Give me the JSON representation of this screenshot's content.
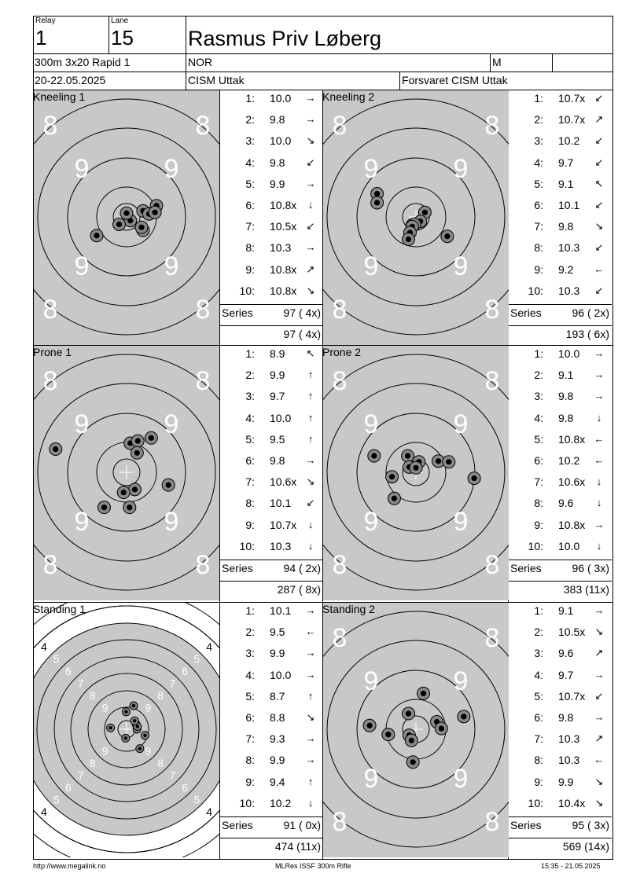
{
  "header": {
    "relay_label": "Relay",
    "relay_value": "1",
    "lane_label": "Lane",
    "lane_value": "15",
    "name": "Rasmus Priv Løberg",
    "event": "300m 3x20 Rapid 1",
    "nation": "NOR",
    "gender": "M",
    "date": "20-22.05.2025",
    "competition": "CISM Uttak",
    "organizer": "Forsvaret CISM Uttak"
  },
  "series": [
    {
      "title": "Kneeling 1",
      "target_kind": "prone_kneel",
      "shots": [
        {
          "n": "1:",
          "v": "10.0",
          "arrow": "→"
        },
        {
          "n": "2:",
          "v": "9.8",
          "arrow": "→"
        },
        {
          "n": "3:",
          "v": "10.0",
          "arrow": "↘"
        },
        {
          "n": "4:",
          "v": "9.8",
          "arrow": "↙"
        },
        {
          "n": "5:",
          "v": "9.9",
          "arrow": "→"
        },
        {
          "n": "6:",
          "v": "10.8x",
          "arrow": "↓"
        },
        {
          "n": "7:",
          "v": "10.5x",
          "arrow": "↙"
        },
        {
          "n": "8:",
          "v": "10.3",
          "arrow": "→"
        },
        {
          "n": "9:",
          "v": "10.8x",
          "arrow": "↗"
        },
        {
          "n": "10:",
          "v": "10.8x",
          "arrow": "↘"
        }
      ],
      "series_label": "Series",
      "series_total": "97 ( 4x)",
      "running_total": "97 ( 4x)",
      "holes": [
        [
          0.22,
          -0.18
        ],
        [
          0.05,
          -0.05
        ],
        [
          0.0,
          0.05
        ],
        [
          -0.1,
          -0.1
        ],
        [
          0.22,
          0.08
        ],
        [
          0.3,
          0.04
        ],
        [
          0.4,
          0.15
        ],
        [
          0.38,
          0.06
        ],
        [
          -0.4,
          -0.25
        ],
        [
          0.2,
          -0.14
        ]
      ]
    },
    {
      "title": "Kneeling 2",
      "target_kind": "prone_kneel",
      "shots": [
        {
          "n": "1:",
          "v": "10.7x",
          "arrow": "↙"
        },
        {
          "n": "2:",
          "v": "10.7x",
          "arrow": "↗"
        },
        {
          "n": "3:",
          "v": "10.2",
          "arrow": "↙"
        },
        {
          "n": "4:",
          "v": "9.7",
          "arrow": "↙"
        },
        {
          "n": "5:",
          "v": "9.1",
          "arrow": "↖"
        },
        {
          "n": "6:",
          "v": "10.1",
          "arrow": "↙"
        },
        {
          "n": "7:",
          "v": "9.8",
          "arrow": "↘"
        },
        {
          "n": "8:",
          "v": "10.3",
          "arrow": "↙"
        },
        {
          "n": "9:",
          "v": "9.2",
          "arrow": "←"
        },
        {
          "n": "10:",
          "v": "10.3",
          "arrow": "↙"
        }
      ],
      "series_label": "Series",
      "series_total": "96 ( 2x)",
      "running_total": "193 ( 6x)",
      "holes": [
        [
          0.12,
          0.06
        ],
        [
          0.06,
          -0.06
        ],
        [
          -0.05,
          -0.11
        ],
        [
          -0.02,
          -0.1
        ],
        [
          -0.52,
          0.31
        ],
        [
          -0.05,
          -0.13
        ],
        [
          -0.08,
          -0.21
        ],
        [
          0.42,
          -0.26
        ],
        [
          -0.1,
          -0.3
        ],
        [
          -0.52,
          0.19
        ]
      ]
    },
    {
      "title": "Prone 1",
      "target_kind": "prone_kneel",
      "shots": [
        {
          "n": "1:",
          "v": "8.9",
          "arrow": "↖"
        },
        {
          "n": "2:",
          "v": "9.9",
          "arrow": "↑"
        },
        {
          "n": "3:",
          "v": "9.7",
          "arrow": "↑"
        },
        {
          "n": "4:",
          "v": "10.0",
          "arrow": "↑"
        },
        {
          "n": "5:",
          "v": "9.5",
          "arrow": "↑"
        },
        {
          "n": "6:",
          "v": "9.8",
          "arrow": "→"
        },
        {
          "n": "7:",
          "v": "10.6x",
          "arrow": "↘"
        },
        {
          "n": "8:",
          "v": "10.1",
          "arrow": "↙"
        },
        {
          "n": "9:",
          "v": "10.7x",
          "arrow": "↓"
        },
        {
          "n": "10:",
          "v": "10.3",
          "arrow": "↓"
        }
      ],
      "series_label": "Series",
      "series_total": "94 ( 2x)",
      "running_total": "287 ( 8x)",
      "holes": [
        [
          -0.95,
          0.31
        ],
        [
          0.05,
          0.39
        ],
        [
          0.15,
          0.42
        ],
        [
          0.33,
          0.46
        ],
        [
          0.14,
          0.26
        ],
        [
          0.56,
          -0.17
        ],
        [
          0.11,
          -0.23
        ],
        [
          -0.04,
          -0.27
        ],
        [
          0.04,
          -0.47
        ],
        [
          -0.3,
          -0.47
        ]
      ]
    },
    {
      "title": "Prone 2",
      "target_kind": "prone_kneel",
      "shots": [
        {
          "n": "1:",
          "v": "10.0",
          "arrow": "→"
        },
        {
          "n": "2:",
          "v": "9.1",
          "arrow": "→"
        },
        {
          "n": "3:",
          "v": "9.8",
          "arrow": "→"
        },
        {
          "n": "4:",
          "v": "9.8",
          "arrow": "↓"
        },
        {
          "n": "5:",
          "v": "10.8x",
          "arrow": "←"
        },
        {
          "n": "6:",
          "v": "10.2",
          "arrow": "←"
        },
        {
          "n": "7:",
          "v": "10.6x",
          "arrow": "↓"
        },
        {
          "n": "8:",
          "v": "9.6",
          "arrow": "↓"
        },
        {
          "n": "9:",
          "v": "10.8x",
          "arrow": "→"
        },
        {
          "n": "10:",
          "v": "10.0",
          "arrow": "↓"
        }
      ],
      "series_label": "Series",
      "series_total": "96 ( 3x)",
      "running_total": "383 (11x)",
      "holes": [
        [
          -0.32,
          -0.06
        ],
        [
          -0.11,
          0.22
        ],
        [
          -0.29,
          -0.35
        ],
        [
          -0.56,
          0.22
        ],
        [
          -0.09,
          0.07
        ],
        [
          0.04,
          0.14
        ],
        [
          0.0,
          0.06
        ],
        [
          0.3,
          0.15
        ],
        [
          0.44,
          0.14
        ],
        [
          0.78,
          -0.08
        ]
      ]
    },
    {
      "title": "Standing 1",
      "target_kind": "standing",
      "shots": [
        {
          "n": "1:",
          "v": "10.1",
          "arrow": "→"
        },
        {
          "n": "2:",
          "v": "9.5",
          "arrow": "←"
        },
        {
          "n": "3:",
          "v": "9.9",
          "arrow": "→"
        },
        {
          "n": "4:",
          "v": "10.0",
          "arrow": "→"
        },
        {
          "n": "5:",
          "v": "8.7",
          "arrow": "↑"
        },
        {
          "n": "6:",
          "v": "8.8",
          "arrow": "↘"
        },
        {
          "n": "7:",
          "v": "9.3",
          "arrow": "→"
        },
        {
          "n": "8:",
          "v": "9.9",
          "arrow": "→"
        },
        {
          "n": "9:",
          "v": "9.4",
          "arrow": "↑"
        },
        {
          "n": "10:",
          "v": "10.2",
          "arrow": "↓"
        }
      ],
      "series_label": "Series",
      "series_total": "91 ( 0x)",
      "running_total": "474 (11x)",
      "holes": [
        [
          0.22,
          0.0
        ],
        [
          -0.34,
          0.03
        ],
        [
          0.2,
          0.11
        ],
        [
          0.23,
          0.06
        ],
        [
          0.15,
          0.5
        ],
        [
          0.28,
          -0.41
        ],
        [
          0.39,
          -0.13
        ],
        [
          0.17,
          0.18
        ],
        [
          -0.01,
          0.37
        ],
        [
          -0.02,
          -0.19
        ]
      ]
    },
    {
      "title": "Standing 2",
      "target_kind": "prone_kneel",
      "shots": [
        {
          "n": "1:",
          "v": "9.1",
          "arrow": "→"
        },
        {
          "n": "2:",
          "v": "10.5x",
          "arrow": "↘"
        },
        {
          "n": "3:",
          "v": "9.6",
          "arrow": "↗"
        },
        {
          "n": "4:",
          "v": "9.7",
          "arrow": "→"
        },
        {
          "n": "5:",
          "v": "10.7x",
          "arrow": "↙"
        },
        {
          "n": "6:",
          "v": "9.8",
          "arrow": "→"
        },
        {
          "n": "7:",
          "v": "10.3",
          "arrow": "↗"
        },
        {
          "n": "8:",
          "v": "10.3",
          "arrow": "←"
        },
        {
          "n": "9:",
          "v": "9.9",
          "arrow": "↘"
        },
        {
          "n": "10:",
          "v": "10.4x",
          "arrow": "↘"
        }
      ],
      "series_label": "Series",
      "series_total": "95 ( 3x)",
      "running_total": "569 (14x)",
      "holes": [
        [
          -0.62,
          0.05
        ],
        [
          -0.37,
          -0.07
        ],
        [
          -0.09,
          -0.08
        ],
        [
          -0.06,
          -0.15
        ],
        [
          0.1,
          0.48
        ],
        [
          0.28,
          0.1
        ],
        [
          0.34,
          0.01
        ],
        [
          0.64,
          0.17
        ],
        [
          -0.04,
          -0.44
        ],
        [
          -0.1,
          0.21
        ]
      ]
    }
  ],
  "target_rings": {
    "prone_kneel_numbers": [
      "8",
      "9"
    ],
    "standing_numbers": [
      "4",
      "5",
      "6",
      "7",
      "8",
      "9"
    ]
  },
  "footer": {
    "url": "http://www.megalink.no",
    "program": "MLRes ISSF 300m Rifle",
    "timestamp": "15:35 - 21.05.2025"
  }
}
